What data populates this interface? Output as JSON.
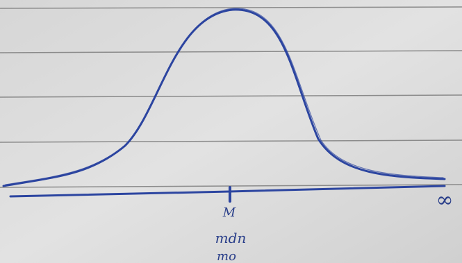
{
  "labels": {
    "mean": "M",
    "median": "mdn",
    "mode": "mo",
    "infinity": "∞"
  }
}
